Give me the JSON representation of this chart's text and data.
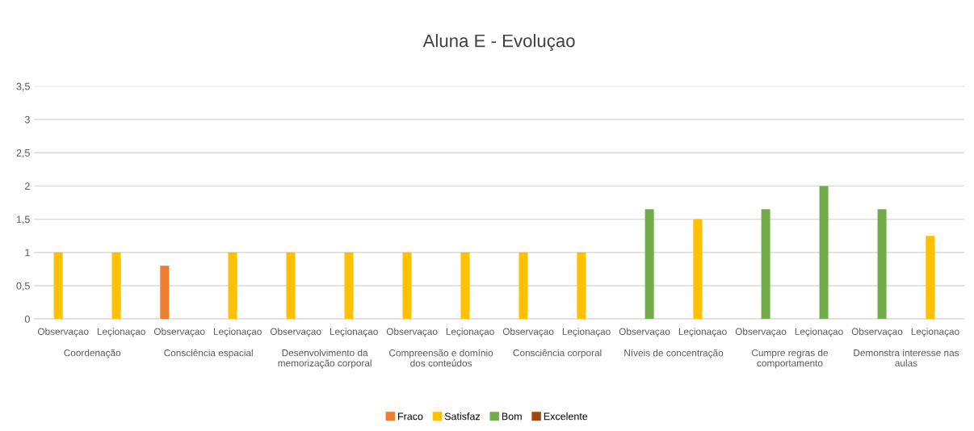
{
  "chart_data": {
    "type": "bar",
    "title": "Aluna E - Evoluçao",
    "categories": [
      "Observaçao",
      "Leçionaçao",
      "Observaçao",
      "Leçionaçao",
      "Observaçao",
      "Leçionaçao",
      "Observaçao",
      "Leçionaçao",
      "Observaçao",
      "Leçionaçao",
      "Observaçao",
      "Leçionaçao",
      "Observaçao",
      "Leçionaçao",
      "Observaçao",
      "Leçionaçao"
    ],
    "series": [
      {
        "name": "Fraco",
        "color": "#ed7d31",
        "values": [
          null,
          null,
          0.8,
          null,
          null,
          null,
          null,
          null,
          null,
          null,
          null,
          null,
          null,
          null,
          null,
          null
        ]
      },
      {
        "name": "Satisfaz",
        "color": "#ffc000",
        "values": [
          1,
          1,
          null,
          1,
          1,
          1,
          1,
          1,
          1,
          1,
          null,
          1.5,
          null,
          null,
          null,
          1.25
        ]
      },
      {
        "name": "Bom",
        "color": "#70ad47",
        "values": [
          null,
          null,
          null,
          null,
          null,
          null,
          null,
          null,
          null,
          null,
          1.65,
          null,
          1.65,
          2,
          1.65,
          null
        ]
      },
      {
        "name": "Excelente",
        "color": "#9e480e",
        "values": [
          null,
          null,
          null,
          null,
          null,
          null,
          null,
          null,
          null,
          null,
          null,
          null,
          null,
          null,
          null,
          null
        ]
      }
    ],
    "annotations": [
      "Coordenação",
      "Consciência espacial",
      "Desenvolvimento da memorização corporal",
      "Compreensão e domínio dos conteúdos",
      "Consciência corporal",
      "Níveis de concentração",
      "Cumpre regras de comportamento",
      "Demonstra interesse nas aulas"
    ],
    "ylim": [
      0,
      3.5
    ],
    "yticks": [
      0,
      {
        "value": 0.5,
        "label": "0,5"
      },
      1,
      {
        "value": 1.5,
        "label": "1,5"
      },
      2,
      {
        "value": 2.5,
        "label": "2,5"
      },
      3,
      {
        "value": 3.5,
        "label": "3,5"
      }
    ],
    "grid": "y",
    "legend": "bottom"
  }
}
